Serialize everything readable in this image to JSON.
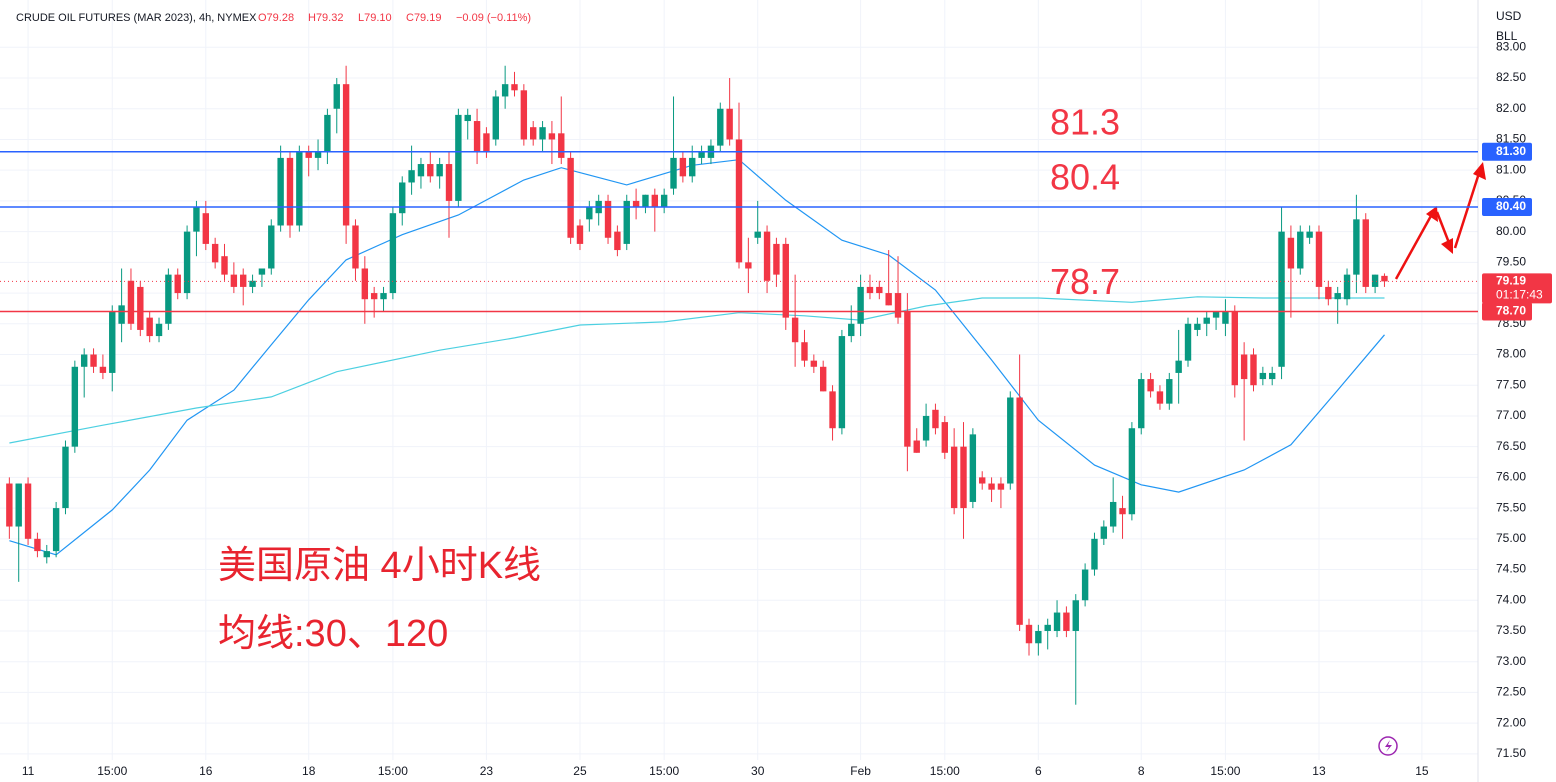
{
  "header": {
    "symbol": "CRUDE OIL FUTURES (MAR 2023), 4h, NYMEX",
    "open": "O79.28",
    "high": "H79.32",
    "low": "L79.10",
    "close": "C79.19",
    "change": "−0.09 (−0.11%)"
  },
  "chart_data": {
    "type": "candlestick",
    "up_color": "#089981",
    "down_color": "#f23645",
    "candles": [
      [
        75.9,
        76.0,
        75.0,
        75.2
      ],
      [
        75.2,
        75.9,
        74.3,
        75.9
      ],
      [
        75.9,
        76.0,
        74.9,
        75.0
      ],
      [
        75.0,
        75.1,
        74.7,
        74.8
      ],
      [
        74.7,
        74.9,
        74.6,
        74.8
      ],
      [
        74.8,
        75.6,
        74.7,
        75.5
      ],
      [
        75.5,
        76.6,
        75.4,
        76.5
      ],
      [
        76.5,
        77.9,
        76.4,
        77.8
      ],
      [
        77.8,
        78.1,
        77.3,
        78.0
      ],
      [
        78.0,
        78.1,
        77.7,
        77.8
      ],
      [
        77.8,
        78.0,
        77.6,
        77.7
      ],
      [
        77.7,
        78.8,
        77.4,
        78.7
      ],
      [
        78.5,
        79.4,
        78.2,
        78.8
      ],
      [
        79.2,
        79.4,
        78.4,
        78.5
      ],
      [
        79.1,
        79.2,
        78.3,
        78.4
      ],
      [
        78.6,
        78.7,
        78.2,
        78.3
      ],
      [
        78.3,
        78.6,
        78.2,
        78.5
      ],
      [
        78.5,
        79.4,
        78.4,
        79.3
      ],
      [
        79.3,
        79.4,
        78.9,
        79.0
      ],
      [
        79.0,
        80.1,
        78.9,
        80.0
      ],
      [
        80.0,
        80.5,
        79.6,
        80.4
      ],
      [
        80.3,
        80.5,
        79.7,
        79.8
      ],
      [
        79.8,
        79.9,
        79.4,
        79.5
      ],
      [
        79.6,
        79.8,
        79.2,
        79.3
      ],
      [
        79.3,
        79.5,
        79.0,
        79.1
      ],
      [
        79.3,
        79.4,
        78.8,
        79.1
      ],
      [
        79.1,
        79.3,
        79.0,
        79.2
      ],
      [
        79.3,
        79.4,
        79.1,
        79.4
      ],
      [
        79.4,
        80.2,
        79.3,
        80.1
      ],
      [
        80.1,
        81.4,
        80.0,
        81.2
      ],
      [
        81.2,
        81.3,
        79.9,
        80.1
      ],
      [
        80.1,
        81.4,
        80.0,
        81.3
      ],
      [
        81.3,
        81.4,
        80.9,
        81.2
      ],
      [
        81.2,
        81.5,
        81.0,
        81.3
      ],
      [
        81.3,
        82.0,
        81.1,
        81.9
      ],
      [
        82.0,
        82.5,
        81.6,
        82.4
      ],
      [
        82.4,
        82.7,
        79.8,
        80.1
      ],
      [
        80.1,
        80.2,
        79.2,
        79.4
      ],
      [
        79.4,
        79.6,
        78.5,
        78.9
      ],
      [
        79.0,
        79.1,
        78.6,
        78.9
      ],
      [
        78.9,
        79.1,
        78.7,
        79.0
      ],
      [
        79.0,
        80.4,
        78.9,
        80.3
      ],
      [
        80.3,
        80.9,
        80.1,
        80.8
      ],
      [
        80.8,
        81.4,
        80.6,
        81.0
      ],
      [
        80.9,
        81.2,
        80.7,
        81.1
      ],
      [
        81.1,
        81.3,
        80.8,
        80.9
      ],
      [
        80.9,
        81.2,
        80.7,
        81.1
      ],
      [
        81.1,
        81.3,
        79.9,
        80.5
      ],
      [
        80.5,
        82.0,
        80.4,
        81.9
      ],
      [
        81.8,
        82.0,
        81.5,
        81.9
      ],
      [
        81.8,
        82.0,
        81.1,
        81.3
      ],
      [
        81.6,
        81.7,
        81.2,
        81.3
      ],
      [
        81.5,
        82.3,
        81.4,
        82.2
      ],
      [
        82.2,
        82.7,
        82.0,
        82.4
      ],
      [
        82.4,
        82.6,
        82.2,
        82.3
      ],
      [
        82.3,
        82.4,
        81.4,
        81.5
      ],
      [
        81.7,
        81.8,
        81.4,
        81.5
      ],
      [
        81.5,
        81.8,
        81.3,
        81.7
      ],
      [
        81.6,
        81.8,
        81.1,
        81.5
      ],
      [
        81.6,
        82.2,
        81.1,
        81.2
      ],
      [
        81.2,
        81.3,
        79.8,
        79.9
      ],
      [
        80.1,
        80.2,
        79.7,
        79.8
      ],
      [
        80.2,
        80.5,
        80.0,
        80.4
      ],
      [
        80.3,
        80.6,
        80.1,
        80.5
      ],
      [
        80.5,
        80.6,
        79.8,
        79.9
      ],
      [
        80.0,
        80.1,
        79.6,
        79.7
      ],
      [
        79.8,
        80.6,
        79.7,
        80.5
      ],
      [
        80.5,
        80.7,
        80.2,
        80.4
      ],
      [
        80.4,
        80.6,
        80.3,
        80.6
      ],
      [
        80.6,
        80.7,
        80.0,
        80.4
      ],
      [
        80.4,
        80.7,
        80.3,
        80.6
      ],
      [
        80.7,
        82.2,
        80.6,
        81.2
      ],
      [
        81.2,
        81.3,
        80.8,
        80.9
      ],
      [
        80.9,
        81.4,
        80.8,
        81.2
      ],
      [
        81.2,
        81.4,
        81.1,
        81.3
      ],
      [
        81.2,
        81.5,
        81.1,
        81.4
      ],
      [
        81.4,
        82.1,
        81.3,
        82.0
      ],
      [
        82.0,
        82.5,
        81.4,
        81.5
      ],
      [
        81.5,
        82.1,
        79.4,
        79.5
      ],
      [
        79.5,
        79.9,
        79.0,
        79.4
      ],
      [
        79.9,
        80.5,
        79.8,
        80.0
      ],
      [
        80.0,
        80.1,
        79.0,
        79.2
      ],
      [
        79.8,
        79.9,
        79.1,
        79.3
      ],
      [
        79.8,
        79.9,
        78.4,
        78.6
      ],
      [
        78.6,
        79.3,
        77.8,
        78.2
      ],
      [
        78.2,
        78.4,
        77.8,
        77.9
      ],
      [
        77.9,
        78.0,
        77.7,
        77.8
      ],
      [
        77.8,
        77.9,
        77.4,
        77.4
      ],
      [
        77.4,
        77.5,
        76.6,
        76.8
      ],
      [
        76.8,
        78.4,
        76.7,
        78.3
      ],
      [
        78.3,
        78.8,
        78.2,
        78.5
      ],
      [
        78.5,
        79.3,
        78.3,
        79.1
      ],
      [
        79.1,
        79.3,
        78.9,
        79.0
      ],
      [
        79.1,
        79.2,
        78.9,
        79.0
      ],
      [
        79.0,
        79.7,
        78.8,
        78.8
      ],
      [
        79.0,
        79.6,
        78.5,
        78.6
      ],
      [
        78.7,
        79.0,
        76.1,
        76.5
      ],
      [
        76.6,
        76.8,
        76.4,
        76.4
      ],
      [
        76.6,
        77.2,
        76.5,
        77.0
      ],
      [
        77.1,
        77.2,
        76.7,
        76.8
      ],
      [
        76.9,
        77.0,
        76.3,
        76.4
      ],
      [
        76.5,
        76.8,
        75.4,
        75.5
      ],
      [
        76.5,
        76.9,
        75.0,
        75.5
      ],
      [
        75.6,
        76.8,
        75.5,
        76.7
      ],
      [
        76.0,
        76.1,
        75.8,
        75.9
      ],
      [
        75.9,
        76.0,
        75.6,
        75.8
      ],
      [
        75.9,
        76.0,
        75.5,
        75.8
      ],
      [
        75.9,
        77.4,
        75.8,
        77.3
      ],
      [
        77.3,
        78.0,
        73.5,
        73.6
      ],
      [
        73.6,
        73.7,
        73.1,
        73.3
      ],
      [
        73.3,
        73.6,
        73.1,
        73.5
      ],
      [
        73.5,
        73.7,
        73.2,
        73.6
      ],
      [
        73.5,
        74.0,
        73.4,
        73.8
      ],
      [
        73.8,
        73.9,
        73.4,
        73.5
      ],
      [
        73.5,
        74.1,
        72.3,
        74.0
      ],
      [
        74.0,
        74.6,
        73.9,
        74.5
      ],
      [
        74.5,
        75.1,
        74.4,
        75.0
      ],
      [
        75.0,
        75.3,
        74.9,
        75.2
      ],
      [
        75.2,
        76.0,
        75.1,
        75.6
      ],
      [
        75.5,
        75.7,
        75.0,
        75.4
      ],
      [
        75.4,
        76.9,
        75.3,
        76.8
      ],
      [
        76.8,
        77.7,
        76.7,
        77.6
      ],
      [
        77.6,
        77.7,
        77.3,
        77.4
      ],
      [
        77.4,
        77.5,
        77.1,
        77.2
      ],
      [
        77.2,
        77.7,
        77.1,
        77.6
      ],
      [
        77.7,
        78.4,
        77.2,
        77.9
      ],
      [
        77.9,
        78.6,
        77.8,
        78.5
      ],
      [
        78.4,
        78.6,
        78.3,
        78.5
      ],
      [
        78.5,
        78.7,
        78.3,
        78.6
      ],
      [
        78.6,
        78.7,
        78.4,
        78.7
      ],
      [
        78.5,
        78.9,
        78.3,
        78.7
      ],
      [
        78.7,
        78.8,
        77.3,
        77.5
      ],
      [
        78.0,
        78.2,
        76.6,
        77.6
      ],
      [
        78.0,
        78.1,
        77.4,
        77.5
      ],
      [
        77.6,
        77.8,
        77.5,
        77.7
      ],
      [
        77.6,
        77.8,
        77.5,
        77.7
      ],
      [
        77.8,
        80.4,
        77.6,
        80.0
      ],
      [
        79.9,
        80.1,
        78.6,
        79.4
      ],
      [
        79.4,
        80.1,
        79.3,
        80.0
      ],
      [
        79.9,
        80.1,
        79.8,
        80.0
      ],
      [
        80.0,
        80.1,
        78.9,
        79.1
      ],
      [
        79.1,
        79.2,
        78.8,
        78.9
      ],
      [
        78.9,
        79.1,
        78.5,
        79.0
      ],
      [
        78.9,
        79.4,
        78.8,
        79.3
      ],
      [
        79.3,
        80.6,
        79.0,
        80.2
      ],
      [
        80.2,
        80.3,
        79.0,
        79.1
      ],
      [
        79.1,
        79.3,
        79.0,
        79.3
      ],
      [
        79.28,
        79.32,
        79.1,
        79.19
      ]
    ],
    "moving_averages": [
      {
        "color": "#2196f3",
        "x": [
          0,
          5,
          11,
          15,
          19,
          24,
          28,
          32,
          36,
          42,
          48,
          55,
          59,
          62,
          66,
          73,
          78,
          83,
          89,
          94,
          99,
          105,
          110,
          116,
          121,
          125,
          132,
          137,
          142,
          147
        ],
        "values": [
          74.97,
          74.74,
          75.47,
          76.12,
          76.93,
          77.42,
          78.16,
          78.89,
          79.54,
          79.95,
          80.27,
          80.84,
          81.04,
          80.92,
          80.76,
          81.08,
          81.17,
          80.51,
          79.86,
          79.62,
          79.05,
          77.91,
          76.93,
          76.2,
          75.88,
          75.76,
          76.12,
          76.53,
          77.42,
          78.32
        ]
      },
      {
        "color": "#4dd0e1",
        "x": [
          0,
          10,
          20,
          28,
          35,
          46,
          54,
          61,
          70,
          78,
          85,
          91,
          98,
          104,
          110,
          120,
          127,
          134,
          140,
          147
        ],
        "values": [
          76.56,
          76.85,
          77.13,
          77.31,
          77.72,
          78.07,
          78.27,
          78.48,
          78.53,
          78.68,
          78.63,
          78.56,
          78.79,
          78.92,
          78.92,
          78.85,
          78.94,
          78.92,
          78.92,
          78.92
        ]
      }
    ],
    "xlim": [
      -1,
      157
    ],
    "xticks": [
      {
        "value": 2,
        "label": "11"
      },
      {
        "value": 11,
        "label": "15:00"
      },
      {
        "value": 21,
        "label": "16"
      },
      {
        "value": 32,
        "label": "18"
      },
      {
        "value": 41,
        "label": "15:00"
      },
      {
        "value": 51,
        "label": "23"
      },
      {
        "value": 61,
        "label": "25"
      },
      {
        "value": 70,
        "label": "15:00"
      },
      {
        "value": 80,
        "label": "30"
      },
      {
        "value": 91,
        "label": "Feb"
      },
      {
        "value": 100,
        "label": "15:00"
      },
      {
        "value": 110,
        "label": "6"
      },
      {
        "value": 121,
        "label": "8"
      },
      {
        "value": 130,
        "label": "15:00"
      },
      {
        "value": 140,
        "label": "13"
      },
      {
        "value": 151,
        "label": "15"
      }
    ],
    "ylim": [
      71.4,
      83.77
    ],
    "yticks": [
      {
        "value": 71.5,
        "label": "71.50"
      },
      {
        "value": 72,
        "label": "72.00"
      },
      {
        "value": 72.5,
        "label": "72.50"
      },
      {
        "value": 73,
        "label": "73.00"
      },
      {
        "value": 73.5,
        "label": "73.50"
      },
      {
        "value": 74,
        "label": "74.00"
      },
      {
        "value": 74.5,
        "label": "74.50"
      },
      {
        "value": 75,
        "label": "75.00"
      },
      {
        "value": 75.5,
        "label": "75.50"
      },
      {
        "value": 76,
        "label": "76.00"
      },
      {
        "value": 76.5,
        "label": "76.50"
      },
      {
        "value": 77,
        "label": "77.00"
      },
      {
        "value": 77.5,
        "label": "77.50"
      },
      {
        "value": 78,
        "label": "78.00"
      },
      {
        "value": 78.5,
        "label": "78.50"
      },
      {
        "value": 79,
        "label": "79.00"
      },
      {
        "value": 79.5,
        "label": "79.50"
      },
      {
        "value": 80,
        "label": "80.00"
      },
      {
        "value": 80.5,
        "label": "80.50"
      },
      {
        "value": 81,
        "label": "81.00"
      },
      {
        "value": 81.5,
        "label": "81.50"
      },
      {
        "value": 82,
        "label": "82.00"
      },
      {
        "value": 82.5,
        "label": "82.50"
      },
      {
        "value": 83,
        "label": "83.00"
      }
    ],
    "grid": true,
    "axis_units": [
      "USD",
      "BLL"
    ],
    "levels": [
      {
        "value": 81.3,
        "badge": "81.30",
        "color": "#2962ff"
      },
      {
        "value": 80.4,
        "badge": "80.40",
        "color": "#2962ff"
      },
      {
        "value": 78.7,
        "badge": "78.70",
        "color": "#f23645"
      }
    ],
    "level_text_color": "#f23645",
    "current_price": {
      "value": 79.19,
      "countdown": "01:17:43",
      "color": "#f23645"
    },
    "annotations": [
      "美国原油 4小时K线",
      "均线:30、120"
    ],
    "annotation_color": "#e8242f"
  }
}
